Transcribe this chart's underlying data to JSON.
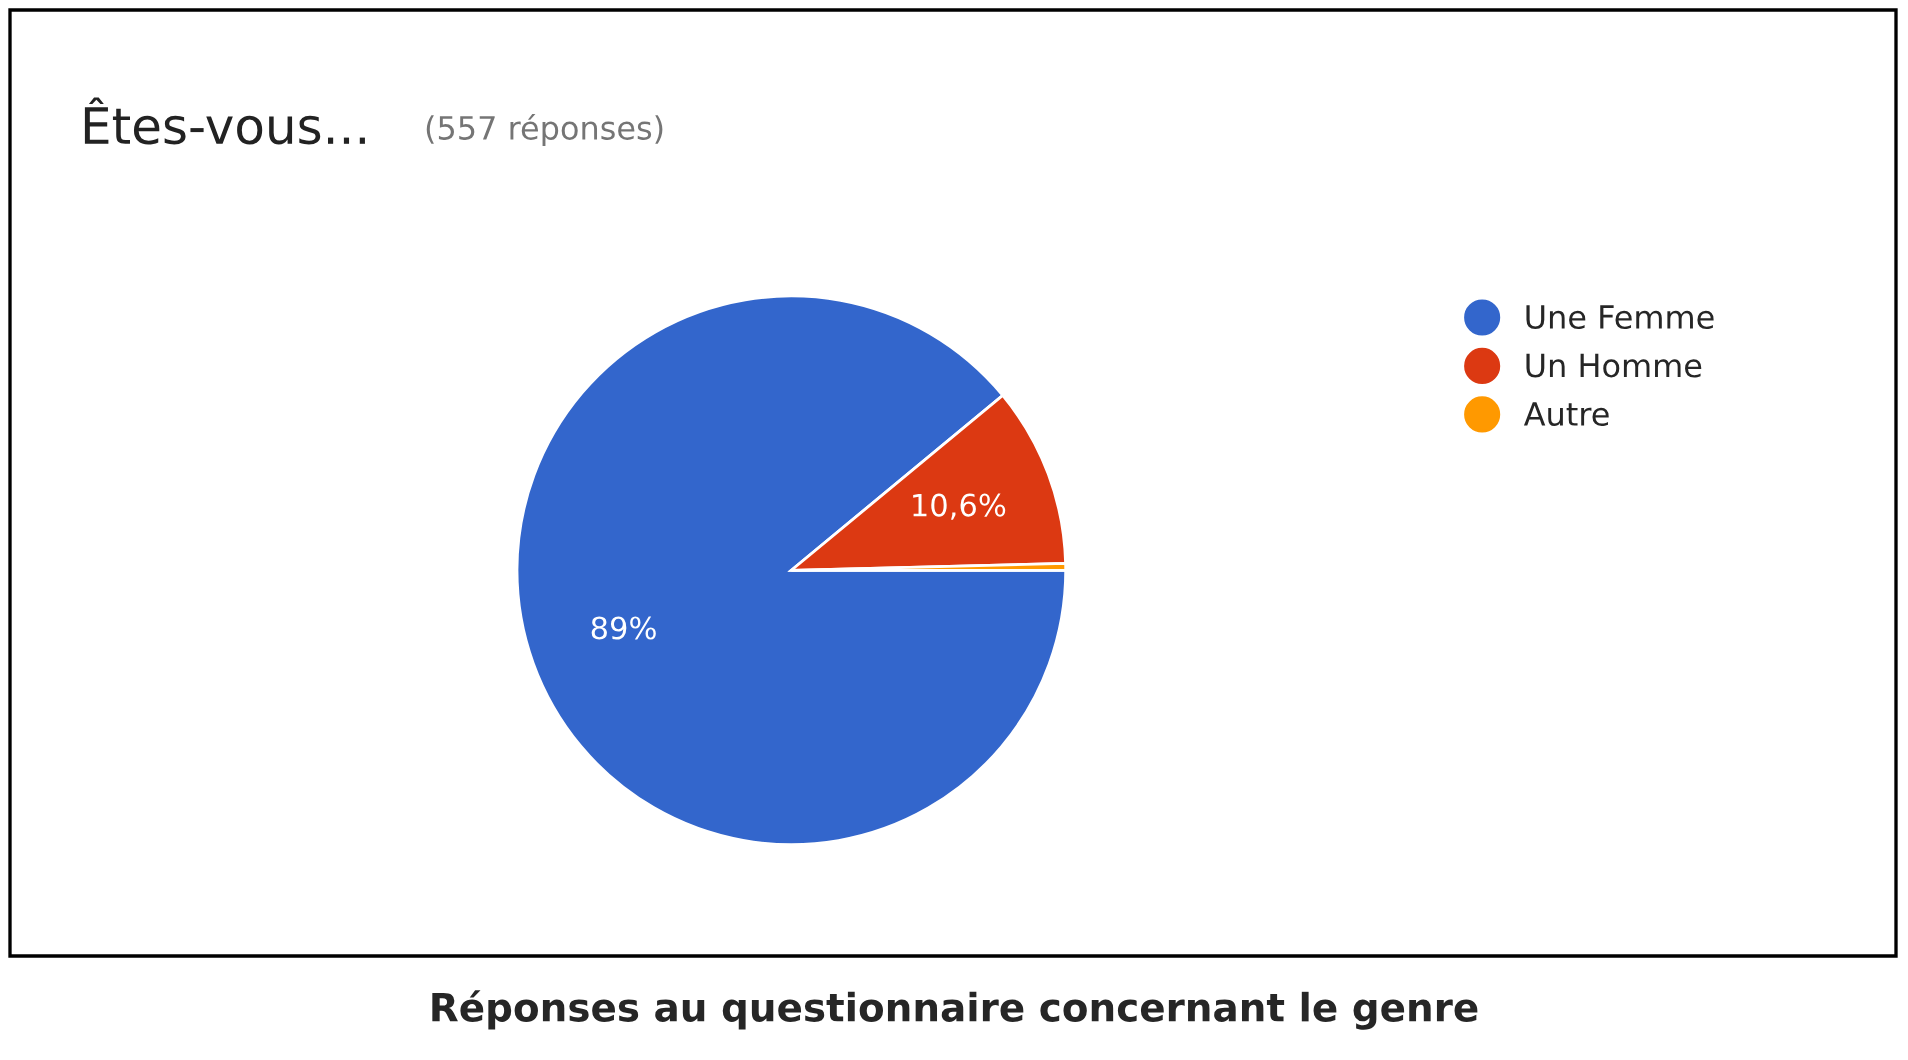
{
  "chart_data": {
    "type": "pie",
    "title": "Êtes-vous...",
    "subtitle": "(557 réponses)",
    "categories": [
      "Une Femme",
      "Un Homme",
      "Autre"
    ],
    "values": [
      89,
      10.6,
      0.4
    ],
    "colors": [
      "#3366cc",
      "#dc3912",
      "#ff9900"
    ],
    "value_labels": [
      "89%",
      "10,6%",
      null
    ],
    "legend": "right",
    "annotations": [
      "Réponses au questionnaire concernant le genre"
    ]
  }
}
